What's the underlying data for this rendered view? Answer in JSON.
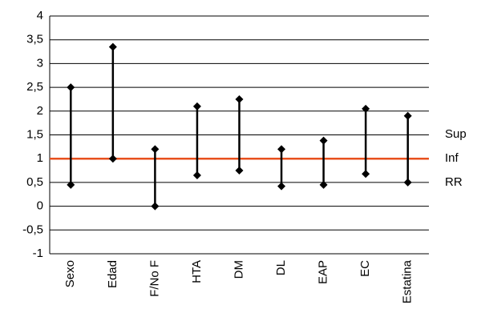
{
  "chart_data": {
    "type": "range",
    "categories": [
      "Sexo",
      "Edad",
      "F/No F",
      "HTA",
      "DM",
      "DL",
      "EAP",
      "EC",
      "Estatina"
    ],
    "series": [
      {
        "name": "Sup",
        "color": "#000000",
        "values": [
          2.5,
          3.35,
          1.2,
          2.1,
          2.25,
          1.2,
          1.38,
          2.05,
          1.9
        ]
      },
      {
        "name": "Inf",
        "color": "#000000",
        "values": [
          0.45,
          1.0,
          0,
          0.65,
          0.75,
          0.42,
          0.45,
          0.68,
          0.5
        ]
      }
    ],
    "reference_line": {
      "name": "RR",
      "value": 1,
      "color": "#e8501e"
    },
    "ylim": [
      -1,
      4
    ],
    "yticks": [
      -1,
      {
        "value": -0.5,
        "label": "-0,5"
      },
      0,
      {
        "value": 0.5,
        "label": "0,5"
      },
      1,
      {
        "value": 1.5,
        "label": "1,5"
      },
      2,
      {
        "value": 2.5,
        "label": "2,5"
      },
      3,
      {
        "value": 3.5,
        "label": "3,5"
      },
      4
    ],
    "grid": true
  }
}
